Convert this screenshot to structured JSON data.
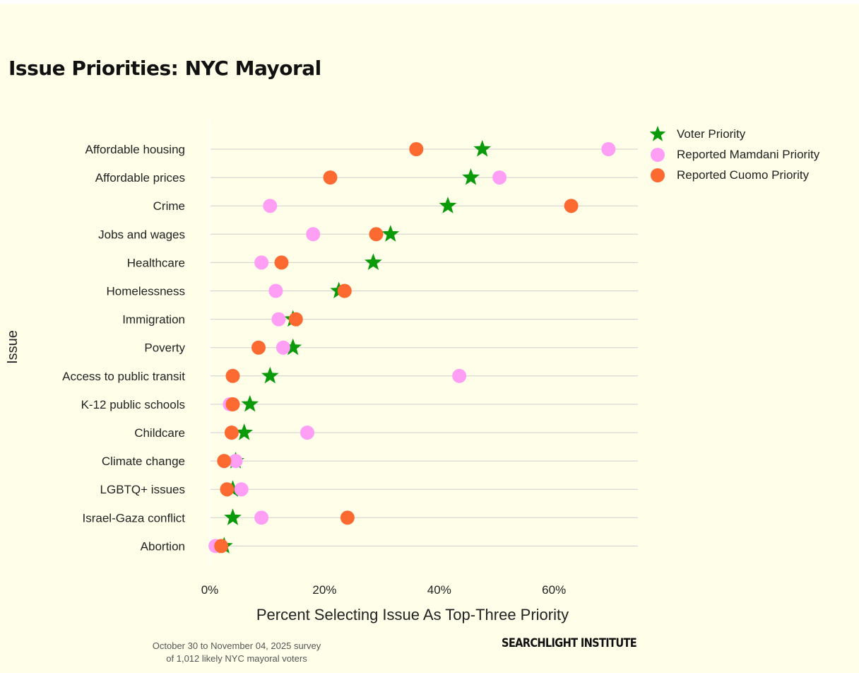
{
  "colors": {
    "voter": "#0a9a0a",
    "mamdani": "#ff9ef5",
    "cuomo": "#fc6a32",
    "grid": "#cfcfcf",
    "background": "#fefee9"
  },
  "footnote": {
    "line1": "October 30 to November 04, 2025 survey",
    "line2": "of 1,012 likely NYC mayoral voters"
  },
  "brand": "SEARCHLIGHT INSTITUTE",
  "chart_data": {
    "type": "scatter",
    "title": "Issue Priorities: NYC Mayoral",
    "xlabel": "Percent Selecting Issue As Top-Three Priority",
    "ylabel": "Issue",
    "xlim": [
      0,
      74
    ],
    "xticks": [
      0,
      20,
      40,
      60
    ],
    "xtick_labels": [
      "0%",
      "20%",
      "40%",
      "60%"
    ],
    "categories": [
      "Affordable housing",
      "Affordable prices",
      "Crime",
      "Jobs and wages",
      "Healthcare",
      "Homelessness",
      "Immigration",
      "Poverty",
      "Access to public transit",
      "K-12 public schools",
      "Childcare",
      "Climate change",
      "LGBTQ+ issues",
      "Israel-Gaza conflict",
      "Abortion"
    ],
    "legend_position": "right",
    "series": [
      {
        "name": "Voter Priority",
        "key": "voter",
        "marker": "star",
        "values": [
          47.5,
          45.5,
          41.5,
          31.5,
          28.5,
          22.5,
          14.5,
          14.5,
          10.5,
          7,
          6,
          4.5,
          4,
          4,
          2.5
        ]
      },
      {
        "name": "Reported Mamdani Priority",
        "key": "mamdani",
        "marker": "circle",
        "values": [
          69.5,
          50.5,
          10.5,
          18,
          9,
          11.5,
          12,
          12.8,
          43.5,
          3.5,
          17,
          4.5,
          5.5,
          9,
          1
        ]
      },
      {
        "name": "Reported Cuomo Priority",
        "key": "cuomo",
        "marker": "circle",
        "values": [
          36,
          21,
          63,
          29,
          12.5,
          23.5,
          15,
          8.5,
          4,
          4,
          3.8,
          2.5,
          3,
          24,
          2
        ]
      }
    ]
  }
}
